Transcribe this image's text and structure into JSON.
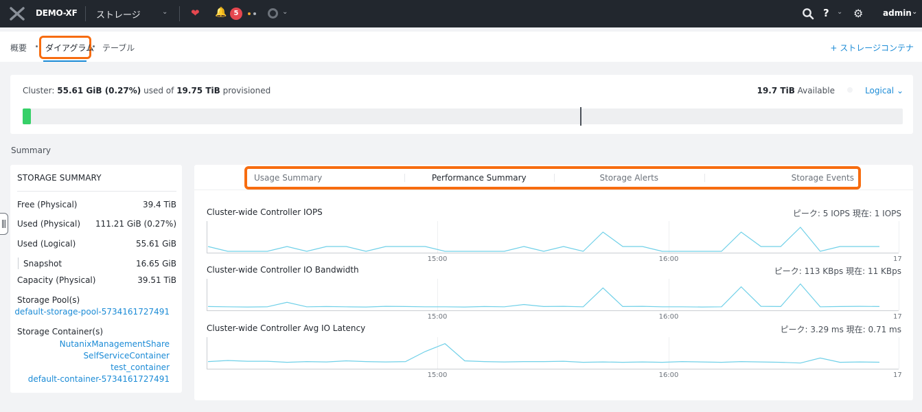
{
  "topbar": {
    "cluster_name": "DEMO-XF",
    "section": "ストレージ",
    "alert_count": "5",
    "user": "admin",
    "icons": [
      "nutanix-logo-icon",
      "health-heart-icon",
      "bell-icon",
      "task-circle-icon",
      "search-icon",
      "help-icon",
      "gear-icon"
    ]
  },
  "subnav": {
    "tabs": [
      "概要",
      "ダイアグラム",
      "テーブル"
    ],
    "active_tab": "ダイアグラム",
    "add_container": "+ ストレージコンテナ"
  },
  "cluster_usage": {
    "prefix": "Cluster:",
    "used": "55.61 GiB (0.27%)",
    "used_of": "used of",
    "provisioned": "19.75 TiB",
    "provisioned_suffix": "provisioned",
    "available": "19.7 TiB",
    "available_suffix": "Available",
    "view_mode": "Logical",
    "used_fraction": 0.0027,
    "marker_fraction": 0.633
  },
  "summary_label": "Summary",
  "storage_summary": {
    "title": "STORAGE SUMMARY",
    "rows": [
      {
        "label": "Free (Physical)",
        "value": "39.4 TiB"
      },
      {
        "label": "Used (Physical)",
        "value": "111.21 GiB (0.27%)"
      },
      {
        "label": "Used (Logical)",
        "value": "55.61 GiB"
      },
      {
        "label": "Snapshot",
        "value": "16.65 GiB"
      },
      {
        "label": "Capacity (Physical)",
        "value": "39.51 TiB"
      }
    ],
    "pools_label": "Storage Pool(s)",
    "pools": [
      "default-storage-pool-5734161727491"
    ],
    "containers_label": "Storage Container(s)",
    "containers": [
      "NutanixManagementShare",
      "SelfServiceContainer",
      "test_container",
      "default-container-5734161727491"
    ]
  },
  "charts_panel": {
    "tabs": [
      "Usage Summary",
      "Performance Summary",
      "Storage Alerts",
      "Storage Events"
    ],
    "active_tab": "Performance Summary"
  },
  "chart_data": [
    {
      "type": "line",
      "title": "Cluster-wide Controller IOPS",
      "stat": "ピーク: 5 IOPS  現在: 1 IOPS",
      "x_ticks": [
        "15:00",
        "16:00",
        "17:"
      ],
      "values": [
        1,
        0,
        0,
        0,
        1,
        0,
        1,
        1,
        0,
        1,
        1,
        1,
        0,
        0,
        0,
        0,
        1,
        0,
        1,
        0,
        4,
        1,
        1,
        0,
        0,
        0,
        0,
        4,
        1,
        1,
        5,
        0,
        1,
        1,
        1
      ],
      "ylim": [
        0,
        6
      ],
      "color": "#6fd0e8"
    },
    {
      "type": "line",
      "title": "Cluster-wide Controller IO Bandwidth",
      "stat": "ピーク: 113 KBps  現在: 11 KBps",
      "x_ticks": [
        "15:00",
        "16:00",
        "17:"
      ],
      "values": [
        11,
        10,
        9,
        10,
        30,
        10,
        11,
        10,
        9,
        12,
        11,
        10,
        10,
        9,
        11,
        10,
        20,
        11,
        12,
        10,
        95,
        11,
        12,
        10,
        10,
        9,
        10,
        100,
        12,
        11,
        113,
        10,
        11,
        12,
        11
      ],
      "ylim": [
        0,
        130
      ],
      "color": "#6fd0e8"
    },
    {
      "type": "line",
      "title": "Cluster-wide Controller Avg IO Latency",
      "stat": "ピーク: 3.29 ms  現在: 0.71 ms",
      "x_ticks": [
        "15:00",
        "16:00",
        "17:"
      ],
      "values": [
        0.8,
        0.95,
        0.85,
        0.85,
        0.7,
        0.8,
        0.75,
        0.9,
        0.8,
        0.75,
        0.8,
        2.2,
        3.29,
        0.9,
        0.8,
        0.75,
        0.8,
        0.8,
        0.85,
        0.7,
        0.75,
        0.7,
        0.75,
        0.7,
        0.8,
        0.75,
        0.7,
        0.8,
        0.75,
        0.7,
        0.6,
        1.3,
        0.7,
        0.75,
        0.71
      ],
      "ylim": [
        0,
        4
      ],
      "color": "#6fd0e8"
    }
  ]
}
